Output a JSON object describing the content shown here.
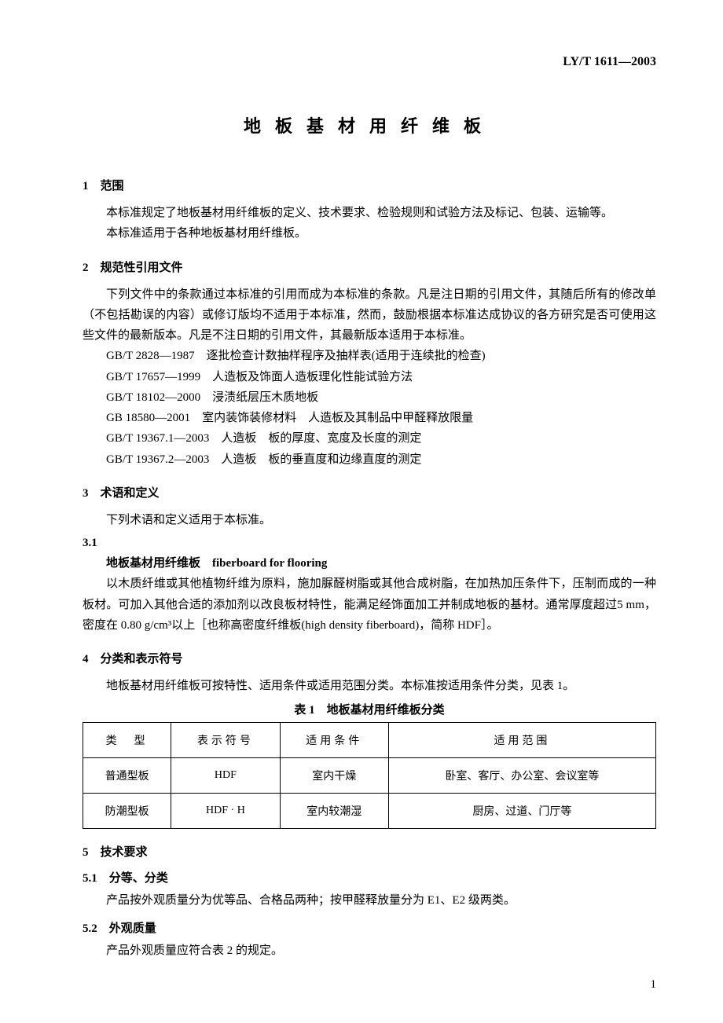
{
  "doc_id": "LY/T 1611—2003",
  "doc_title": "地板基材用纤维板",
  "s1": {
    "heading": "1　范围",
    "p1": "本标准规定了地板基材用纤维板的定义、技术要求、检验规则和试验方法及标记、包装、运输等。",
    "p2": "本标准适用于各种地板基材用纤维板。"
  },
  "s2": {
    "heading": "2　规范性引用文件",
    "p1": "下列文件中的条款通过本标准的引用而成为本标准的条款。凡是注日期的引用文件，其随后所有的修改单（不包括勘误的内容）或修订版均不适用于本标准，然而，鼓励根据本标准达成协议的各方研究是否可使用这些文件的最新版本。凡是不注日期的引用文件，其最新版本适用于本标准。",
    "refs": [
      "GB/T 2828—1987　逐批检查计数抽样程序及抽样表(适用于连续批的检查)",
      "GB/T 17657—1999　人造板及饰面人造板理化性能试验方法",
      "GB/T 18102—2000　浸渍纸层压木质地板",
      "GB 18580—2001　室内装饰装修材料　人造板及其制品中甲醛释放限量",
      "GB/T 19367.1—2003　人造板　板的厚度、宽度及长度的测定",
      "GB/T 19367.2—2003　人造板　板的垂直度和边缘直度的测定"
    ]
  },
  "s3": {
    "heading": "3　术语和定义",
    "p1": "下列术语和定义适用于本标准。",
    "sub_num": "3.1",
    "term": "地板基材用纤维板　fiberboard for flooring",
    "p2": "以木质纤维或其他植物纤维为原料，施加脲醛树脂或其他合成树脂，在加热加压条件下，压制而成的一种板材。可加入其他合适的添加剂以改良板材特性，能满足经饰面加工并制成地板的基材。通常厚度超过5 mm，密度在 0.80 g/cm³以上［也称高密度纤维板(high density fiberboard)，简称 HDF］。"
  },
  "s4": {
    "heading": "4　分类和表示符号",
    "p1": "地板基材用纤维板可按特性、适用条件或适用范围分类。本标准按适用条件分类，见表 1。",
    "table_caption": "表 1　地板基材用纤维板分类",
    "table": {
      "headers": [
        "类　型",
        "表示符号",
        "适用条件",
        "适用范围"
      ],
      "rows": [
        [
          "普通型板",
          "HDF",
          "室内干燥",
          "卧室、客厅、办公室、会议室等"
        ],
        [
          "防潮型板",
          "HDF · H",
          "室内较潮湿",
          "厨房、过道、门厅等"
        ]
      ]
    }
  },
  "s5": {
    "heading": "5　技术要求",
    "s5_1": {
      "heading": "5.1　分等、分类",
      "p1": "产品按外观质量分为优等品、合格品两种；按甲醛释放量分为 E1、E2 级两类。"
    },
    "s5_2": {
      "heading": "5.2　外观质量",
      "p1": "产品外观质量应符合表 2 的规定。"
    }
  },
  "page_num": "1",
  "colors": {
    "text": "#000000",
    "bg": "#ffffff",
    "border": "#000000"
  }
}
